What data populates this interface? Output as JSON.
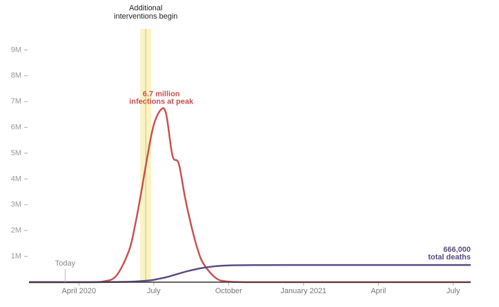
{
  "chart_data": {
    "type": "line",
    "x": [
      1,
      3,
      3.5,
      4,
      4.5,
      5,
      5.25,
      5.5,
      5.75,
      6,
      6.3,
      6.5,
      6.75,
      7,
      7.25,
      7.5,
      7.75,
      8,
      8.5,
      9,
      10,
      12,
      14,
      16,
      18,
      18.7
    ],
    "series": [
      {
        "name": "Infections",
        "color": "#c9504f",
        "values": [
          0,
          0,
          2000,
          30000,
          248000,
          1200000,
          2200000,
          3500000,
          4900000,
          6100000,
          6700000,
          6500000,
          4900000,
          4600000,
          3300000,
          2200000,
          1300000,
          700000,
          150000,
          22000,
          0,
          0,
          0,
          0,
          0,
          0
        ]
      },
      {
        "name": "Deaths",
        "color": "#5b4a80",
        "values": [
          0,
          0,
          500,
          2000,
          6000,
          15000,
          25000,
          40000,
          60000,
          90000,
          150000,
          190000,
          260000,
          330000,
          400000,
          460000,
          515000,
          560000,
          620000,
          650000,
          662000,
          666000,
          666000,
          666000,
          666000,
          666000
        ]
      }
    ],
    "xlim": [
      1,
      18.7
    ],
    "xticks": [
      {
        "value": 3,
        "label": "April 2020"
      },
      {
        "value": 6,
        "label": "July"
      },
      {
        "value": 9,
        "label": "October"
      },
      {
        "value": 12,
        "label": "January 2021"
      },
      {
        "value": 15,
        "label": "April"
      },
      {
        "value": 18,
        "label": "July"
      }
    ],
    "ylim": [
      0,
      10000000
    ],
    "yticks": [
      {
        "value": 1000000,
        "label": "1M"
      },
      {
        "value": 2000000,
        "label": "2M"
      },
      {
        "value": 3000000,
        "label": "3M"
      },
      {
        "value": 4000000,
        "label": "4M"
      },
      {
        "value": 5000000,
        "label": "5M"
      },
      {
        "value": 6000000,
        "label": "6M"
      },
      {
        "value": 7000000,
        "label": "7M"
      },
      {
        "value": 8000000,
        "label": "8M"
      },
      {
        "value": 9000000,
        "label": "9M"
      }
    ],
    "annotations": [
      {
        "lines": [
          "Additional",
          "interventions begin"
        ],
        "x": 5.68,
        "band": [
          5.46,
          5.9
        ]
      },
      {
        "lines": [
          "Today"
        ],
        "x": 2.45
      },
      {
        "lines": [
          "6.7 million",
          "infections at peak"
        ],
        "x": 6.3,
        "series": 0
      },
      {
        "lines": [
          "666,000",
          "total deaths"
        ],
        "x": 18.7,
        "series": 1
      }
    ]
  }
}
